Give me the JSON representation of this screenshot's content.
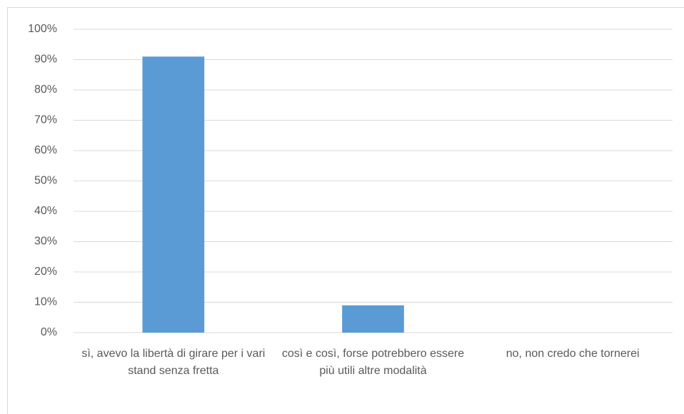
{
  "chart_data": {
    "type": "bar",
    "categories": [
      "sì, avevo la libertà di girare per i vari stand senza fretta",
      "così e così, forse potrebbero essere più utili altre modalità",
      "no, non credo che tornerei"
    ],
    "values": [
      91,
      9,
      0
    ],
    "color": "#5b9bd5",
    "ylim": [
      0,
      100
    ],
    "yticks": [
      {
        "value": 0,
        "label": "0%"
      },
      {
        "value": 10,
        "label": "10%"
      },
      {
        "value": 20,
        "label": "20%"
      },
      {
        "value": 30,
        "label": "30%"
      },
      {
        "value": 40,
        "label": "40%"
      },
      {
        "value": 50,
        "label": "50%"
      },
      {
        "value": 60,
        "label": "60%"
      },
      {
        "value": 70,
        "label": "70%"
      },
      {
        "value": 80,
        "label": "80%"
      },
      {
        "value": 90,
        "label": "90%"
      },
      {
        "value": 100,
        "label": "100%"
      }
    ],
    "grid": true
  }
}
